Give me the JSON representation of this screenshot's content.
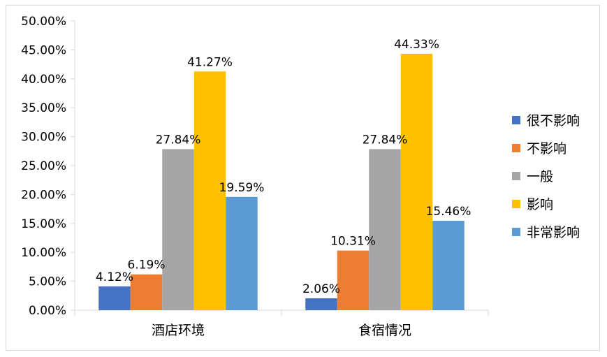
{
  "chart_data": {
    "type": "bar",
    "categories": [
      "酒店环境",
      "食宿情况"
    ],
    "series": [
      {
        "name": "很不影响",
        "values": [
          4.12,
          2.06
        ],
        "labels": [
          "4.12%",
          "2.06%"
        ],
        "color": "#4472C4"
      },
      {
        "name": "不影响",
        "values": [
          6.19,
          10.31
        ],
        "labels": [
          "6.19%",
          "10.31%"
        ],
        "color": "#ED7D31"
      },
      {
        "name": "一般",
        "values": [
          27.84,
          27.84
        ],
        "labels": [
          "27.84%",
          "27.84%"
        ],
        "color": "#A5A5A5"
      },
      {
        "name": "影响",
        "values": [
          41.27,
          44.33
        ],
        "labels": [
          "41.27%",
          "44.33%"
        ],
        "color": "#FFC000"
      },
      {
        "name": "非常影响",
        "values": [
          19.59,
          15.46
        ],
        "labels": [
          "19.59%",
          "15.46%"
        ],
        "color": "#5B9BD5"
      }
    ],
    "ylim": [
      0,
      50
    ],
    "yticks": [
      "0.00%",
      "5.00%",
      "10.00%",
      "15.00%",
      "20.00%",
      "25.00%",
      "30.00%",
      "35.00%",
      "40.00%",
      "45.00%",
      "50.00%"
    ],
    "title": "",
    "xlabel": "",
    "ylabel": "",
    "grid": false,
    "legend_position": "right"
  }
}
